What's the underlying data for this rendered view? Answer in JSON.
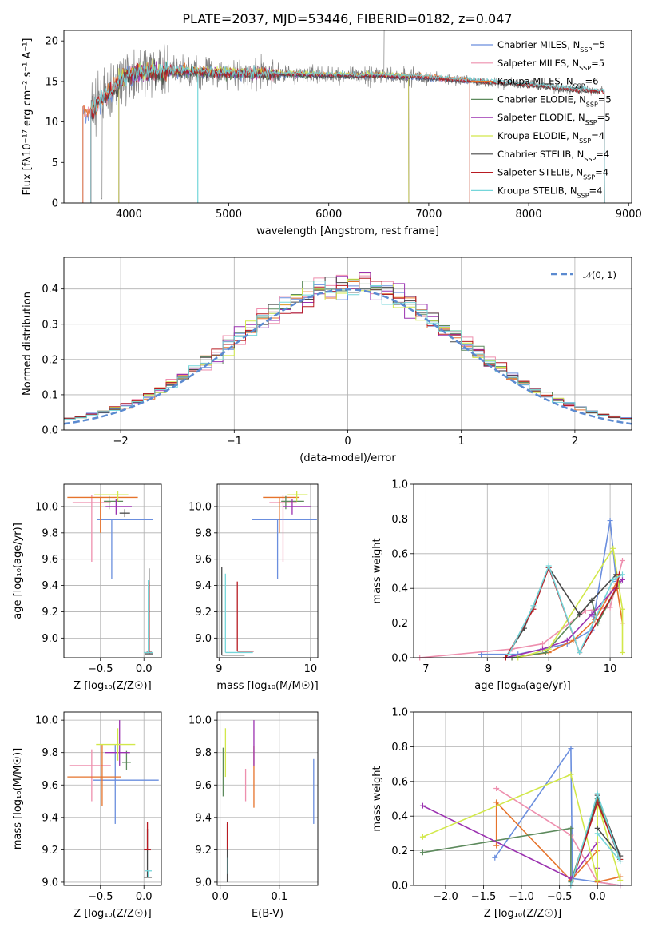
{
  "figure": {
    "title": "PLATE=2037, MJD=53446, FIBERID=0182, z=0.047"
  },
  "colors": {
    "data": "#808080",
    "Chabrier MILES": "#6a8ede",
    "Salpeter MILES": "#ee8fae",
    "Kroupa MILES": "#e6732b",
    "Chabrier ELODIE": "#5d8a5d",
    "Salpeter ELODIE": "#9b32b0",
    "Kroupa ELODIE": "#d2e84a",
    "Chabrier STELIB": "#484848",
    "Salpeter STELIB": "#b81b22",
    "Kroupa STELIB": "#74d6da",
    "normal": "#5b8ad0"
  },
  "chart_data": [
    {
      "id": "spectrum",
      "type": "line",
      "title": "PLATE=2037, MJD=53446, FIBERID=0182, z=0.047",
      "xlabel": "wavelength [Angstrom, rest frame]",
      "ylabel": "Flux [f$_\\lambda$10$^{-17}$ erg cm$^{-2}$ s$^{-1}$ A$^{-1}$]",
      "xlim": [
        3350,
        9030
      ],
      "ylim": [
        0,
        21.3
      ],
      "xticks": [
        4000,
        5000,
        6000,
        7000,
        8000,
        9000
      ],
      "yticks": [
        0,
        5,
        10,
        15,
        20
      ],
      "grid": false,
      "legend_position": "top-right",
      "legend": [
        {
          "model": "Chabrier MILES",
          "nssp": "5"
        },
        {
          "model": "Salpeter MILES",
          "nssp": "5"
        },
        {
          "model": "Kroupa MILES",
          "nssp": "6"
        },
        {
          "model": "Chabrier ELODIE",
          "nssp": "5"
        },
        {
          "model": "Salpeter ELODIE",
          "nssp": "5"
        },
        {
          "model": "Kroupa ELODIE",
          "nssp": "4"
        },
        {
          "model": "Chabrier STELIB",
          "nssp": "4"
        },
        {
          "model": "Salpeter STELIB",
          "nssp": "4"
        },
        {
          "model": "Kroupa STELIB",
          "nssp": "4"
        }
      ],
      "continuum": {
        "x": [
          3620,
          3700,
          3800,
          3900,
          4000,
          4100,
          4300,
          4500,
          4700,
          4900,
          5100,
          5300,
          5500,
          5700,
          5900,
          6100,
          6300,
          6500,
          6700,
          6900,
          7100,
          7300,
          7500,
          7700,
          7900,
          8100,
          8300,
          8500,
          8760
        ],
        "y": [
          11.2,
          12.5,
          13.5,
          15.0,
          15.8,
          16.2,
          16.2,
          16.3,
          16.2,
          16.1,
          16.0,
          16.0,
          15.9,
          15.9,
          15.8,
          15.8,
          15.7,
          15.8,
          15.6,
          15.6,
          15.4,
          15.2,
          15.0,
          14.9,
          14.7,
          14.5,
          14.2,
          14.0,
          13.8
        ]
      },
      "model_range": {
        "MILES": [
          3540,
          7410
        ],
        "ELODIE": [
          3900,
          6800
        ],
        "STELIB": [
          3620,
          8760
        ]
      }
    },
    {
      "id": "residuals",
      "type": "line",
      "xlabel": "(data-model)/error",
      "ylabel": "Normed distribution",
      "xlim": [
        -2.5,
        2.5
      ],
      "ylim": [
        0,
        0.49
      ],
      "xticks": [
        -2,
        -1,
        0,
        1,
        2
      ],
      "yticks": [
        0.0,
        0.1,
        0.2,
        0.3,
        0.4
      ],
      "grid": true,
      "legend_position": "top-right",
      "legend_label": "𝒩(0, 1)",
      "histogram_bin_width": 0.1
    },
    {
      "id": "age-vs-z",
      "type": "scatter",
      "xlabel": "Z [log₁₀(Z/Z☉)]",
      "ylabel": "age  [log₁₀(age/yr)]",
      "xlim": [
        -0.92,
        0.2
      ],
      "ylim": [
        8.85,
        10.17
      ],
      "xticks": [
        -0.5,
        0.0
      ],
      "yticks": [
        9.0,
        9.2,
        9.4,
        9.6,
        9.8,
        10.0
      ],
      "grid": true,
      "points": [
        {
          "series": "Chabrier MILES",
          "x": -0.37,
          "xerr": [
            0.17,
            0.47
          ],
          "y": 9.9,
          "yerr": [
            0.45,
            0
          ]
        },
        {
          "series": "Salpeter MILES",
          "x": -0.6,
          "xerr": [
            0.22,
            0.22
          ],
          "y": 10.03,
          "yerr": [
            0.45,
            0.06
          ]
        },
        {
          "series": "Kroupa MILES",
          "x": -0.5,
          "xerr": [
            0.38,
            0.43
          ],
          "y": 10.07,
          "yerr": [
            0.27,
            0
          ]
        },
        {
          "series": "Chabrier ELODIE",
          "x": -0.4,
          "xerr": [
            0.06,
            0.16
          ],
          "y": 10.04,
          "yerr": [
            0.06,
            0.04
          ]
        },
        {
          "series": "Salpeter ELODIE",
          "x": -0.32,
          "xerr": [
            0.12,
            0.18
          ],
          "y": 10.0,
          "yerr": [
            0.06,
            0.06
          ]
        },
        {
          "series": "Kroupa ELODIE",
          "x": -0.3,
          "xerr": [
            0.27,
            0.12
          ],
          "y": 10.09,
          "yerr": [
            0.05,
            0.03
          ]
        },
        {
          "series": "Chabrier STELIB",
          "x": 0.06,
          "xerr": [
            0.05,
            0.04
          ],
          "y": 8.88,
          "yerr": [
            0,
            0.65
          ]
        },
        {
          "series": "Salpeter STELIB",
          "x": 0.06,
          "xerr": [
            0.03,
            0.03
          ],
          "y": 8.9,
          "yerr": [
            0,
            0.53
          ]
        },
        {
          "series": "Kroupa STELIB",
          "x": 0.05,
          "xerr": [
            0.05,
            0.05
          ],
          "y": 8.89,
          "yerr": [
            0,
            0.55
          ]
        },
        {
          "series": "Chabrier STELIB",
          "x": -0.22,
          "xerr": [
            0.06,
            0.06
          ],
          "y": 9.95,
          "yerr": [
            0.03,
            0.03
          ]
        }
      ]
    },
    {
      "id": "age-vs-mass",
      "type": "scatter",
      "xlabel": "mass [log₁₀(M/M☉)]",
      "ylabel": "",
      "xlim": [
        8.98,
        10.08
      ],
      "ylim": [
        8.85,
        10.17
      ],
      "xticks": [
        9,
        10
      ],
      "yticks": [
        9.0,
        9.2,
        9.4,
        9.6,
        9.8,
        10.0
      ],
      "grid": true,
      "points": [
        {
          "series": "Chabrier MILES",
          "x": 9.64,
          "xerr": [
            0.28,
            0.43
          ],
          "y": 9.9,
          "yerr": [
            0.45,
            0
          ]
        },
        {
          "series": "Salpeter MILES",
          "x": 9.7,
          "xerr": [
            0.15,
            0.15
          ],
          "y": 10.03,
          "yerr": [
            0.45,
            0.06
          ]
        },
        {
          "series": "Kroupa MILES",
          "x": 9.66,
          "xerr": [
            0.18,
            0.22
          ],
          "y": 10.07,
          "yerr": [
            0.27,
            0
          ]
        },
        {
          "series": "Chabrier ELODIE",
          "x": 9.73,
          "xerr": [
            0.05,
            0.2
          ],
          "y": 10.04,
          "yerr": [
            0.06,
            0.04
          ]
        },
        {
          "series": "Salpeter ELODIE",
          "x": 9.8,
          "xerr": [
            0.1,
            0.2
          ],
          "y": 10.0,
          "yerr": [
            0.06,
            0.06
          ]
        },
        {
          "series": "Kroupa ELODIE",
          "x": 9.85,
          "xerr": [
            0.1,
            0.12
          ],
          "y": 10.09,
          "yerr": [
            0.05,
            0.03
          ]
        },
        {
          "series": "Chabrier STELIB",
          "x": 9.03,
          "xerr": [
            0,
            0.25
          ],
          "y": 8.87,
          "yerr": [
            0,
            0.67
          ]
        },
        {
          "series": "Salpeter STELIB",
          "x": 9.2,
          "xerr": [
            0,
            0.18
          ],
          "y": 8.9,
          "yerr": [
            0,
            0.53
          ]
        },
        {
          "series": "Kroupa STELIB",
          "x": 9.07,
          "xerr": [
            0,
            0.3
          ],
          "y": 8.89,
          "yerr": [
            0,
            0.6
          ]
        }
      ]
    },
    {
      "id": "mass-weight-vs-age",
      "type": "line",
      "xlabel": "age  [log₁₀(age/yr)]",
      "ylabel": "mass weight",
      "xlim": [
        6.8,
        10.35
      ],
      "ylim": [
        0,
        1.0
      ],
      "xticks": [
        7,
        8,
        9,
        10
      ],
      "yticks": [
        0.0,
        0.2,
        0.4,
        0.6,
        0.8,
        1.0
      ],
      "grid": true,
      "series": [
        {
          "name": "Chabrier MILES",
          "x": [
            7.9,
            8.5,
            9.3,
            9.7,
            10.0,
            10.1
          ],
          "y": [
            0.02,
            0.02,
            0.08,
            0.16,
            0.79,
            0.44
          ]
        },
        {
          "name": "Salpeter MILES",
          "x": [
            6.9,
            8.4,
            8.9,
            9.6,
            10.0,
            10.2
          ],
          "y": [
            0.0,
            0.05,
            0.08,
            0.27,
            0.29,
            0.56
          ]
        },
        {
          "name": "Kroupa MILES",
          "x": [
            8.4,
            9.0,
            9.4,
            9.75,
            10.1,
            10.2
          ],
          "y": [
            0.0,
            0.03,
            0.1,
            0.22,
            0.43,
            0.2
          ]
        },
        {
          "name": "Chabrier ELODIE",
          "x": [
            8.4,
            8.95,
            9.7,
            9.8,
            10.15
          ],
          "y": [
            0.0,
            0.03,
            0.33,
            0.2,
            0.43
          ]
        },
        {
          "name": "Salpeter ELODIE",
          "x": [
            8.3,
            8.9,
            9.3,
            9.7,
            10.2
          ],
          "y": [
            0.0,
            0.05,
            0.1,
            0.25,
            0.45
          ]
        },
        {
          "name": "Kroupa ELODIE",
          "x": [
            8.5,
            9.0,
            10.05,
            10.2,
            10.2
          ],
          "y": [
            0.0,
            0.05,
            0.63,
            0.28,
            0.03
          ]
        },
        {
          "name": "Chabrier STELIB",
          "x": [
            8.3,
            8.6,
            9.0,
            9.5,
            9.7,
            10.1
          ],
          "y": [
            0.0,
            0.17,
            0.52,
            0.25,
            0.33,
            0.48
          ]
        },
        {
          "name": "Salpeter STELIB",
          "x": [
            8.3,
            8.75,
            9.0,
            9.5,
            10.1,
            10.15
          ],
          "y": [
            0.0,
            0.28,
            0.52,
            0.03,
            0.4,
            0.48
          ]
        },
        {
          "name": "Kroupa STELIB",
          "x": [
            8.35,
            8.75,
            9.0,
            9.5,
            10.05,
            10.2
          ],
          "y": [
            0.02,
            0.3,
            0.53,
            0.03,
            0.45,
            0.48
          ]
        }
      ]
    },
    {
      "id": "mass-vs-z",
      "type": "scatter",
      "xlabel": "Z [log₁₀(Z/Z☉)]",
      "ylabel": "mass [log₁₀(M/M☉)]",
      "xlim": [
        -0.92,
        0.2
      ],
      "ylim": [
        8.98,
        10.05
      ],
      "xticks": [
        -0.5,
        0.0
      ],
      "yticks": [
        9.0,
        9.2,
        9.4,
        9.6,
        9.8,
        10.0
      ],
      "grid": true,
      "points": [
        {
          "series": "Chabrier MILES",
          "x": -0.33,
          "xerr": [
            0.25,
            0.5
          ],
          "y": 9.63,
          "yerr": [
            0.27,
            0.22
          ]
        },
        {
          "series": "Salpeter MILES",
          "x": -0.6,
          "xerr": [
            0.25,
            0.22
          ],
          "y": 9.72,
          "yerr": [
            0.22,
            0.1
          ]
        },
        {
          "series": "Kroupa MILES",
          "x": -0.48,
          "xerr": [
            0.4,
            0.22
          ],
          "y": 9.65,
          "yerr": [
            0.18,
            0.2
          ]
        },
        {
          "series": "Chabrier ELODIE",
          "x": -0.2,
          "xerr": [
            0.05,
            0.05
          ],
          "y": 9.74,
          "yerr": [
            0.05,
            0.07
          ]
        },
        {
          "series": "Salpeter ELODIE",
          "x": -0.28,
          "xerr": [
            0.17,
            0.12
          ],
          "y": 9.8,
          "yerr": [
            0.08,
            0.2
          ]
        },
        {
          "series": "Kroupa ELODIE",
          "x": -0.3,
          "xerr": [
            0.25,
            0.2
          ],
          "y": 9.85,
          "yerr": [
            0.1,
            0.1
          ]
        },
        {
          "series": "Chabrier STELIB",
          "x": 0.04,
          "xerr": [
            0.04,
            0.05
          ],
          "y": 9.03,
          "yerr": [
            0.0,
            0.3
          ]
        },
        {
          "series": "Salpeter STELIB",
          "x": 0.04,
          "xerr": [
            0.04,
            0.04
          ],
          "y": 9.2,
          "yerr": [
            0.0,
            0.17
          ]
        },
        {
          "series": "Kroupa STELIB",
          "x": 0.05,
          "xerr": [
            0.04,
            0.04
          ],
          "y": 9.07,
          "yerr": [
            0.04,
            0.0
          ]
        }
      ]
    },
    {
      "id": "mass-vs-ebv",
      "type": "scatter",
      "xlabel": "E(B-V)",
      "ylabel": "",
      "xlim": [
        -0.005,
        0.165
      ],
      "ylim": [
        8.98,
        10.05
      ],
      "xticks": [
        0.0,
        0.1
      ],
      "yticks": [
        9.0,
        9.2,
        9.4,
        9.6,
        9.8,
        10.0
      ],
      "grid": true,
      "points": [
        {
          "series": "Chabrier MILES",
          "x": 0.158,
          "yerr": [
            0.2,
            0.2
          ],
          "y": 9.56
        },
        {
          "series": "Salpeter MILES",
          "x": 0.043,
          "yerr": [
            0.1,
            0.1
          ],
          "y": 9.6
        },
        {
          "series": "Kroupa MILES",
          "x": 0.057,
          "yerr": [
            0.18,
            0.2
          ],
          "y": 9.64
        },
        {
          "series": "Chabrier ELODIE",
          "x": 0.005,
          "yerr": [
            0.2,
            0.1
          ],
          "y": 9.73
        },
        {
          "series": "Salpeter ELODIE",
          "x": 0.057,
          "yerr": [
            0.08,
            0.2
          ],
          "y": 9.8
        },
        {
          "series": "Kroupa ELODIE",
          "x": 0.009,
          "yerr": [
            0.15,
            0.15
          ],
          "y": 9.8
        },
        {
          "series": "Chabrier STELIB",
          "x": 0.012,
          "yerr": [
            0.03,
            0.33
          ],
          "y": 9.03
        },
        {
          "series": "Salpeter STELIB",
          "x": 0.012,
          "yerr": [
            0.0,
            0.17
          ],
          "y": 9.2
        },
        {
          "series": "Kroupa STELIB",
          "x": 0.013,
          "yerr": [
            0.05,
            0.05
          ],
          "y": 9.1
        }
      ]
    },
    {
      "id": "mass-weight-vs-z",
      "type": "line",
      "xlabel": "Z [log₁₀(Z/Z☉)]",
      "ylabel": "mass weight",
      "xlim": [
        -2.42,
        0.45
      ],
      "ylim": [
        0,
        1.0
      ],
      "xticks": [
        -2.0,
        -1.5,
        -1.0,
        -0.5,
        0.0
      ],
      "yticks": [
        0.0,
        0.2,
        0.4,
        0.6,
        0.8,
        1.0
      ],
      "grid": true,
      "series": [
        {
          "name": "Chabrier MILES",
          "x": [
            -1.35,
            -0.35,
            -0.33,
            0.0,
            0.3
          ],
          "y": [
            0.16,
            0.79,
            0.04,
            0.02,
            0.0
          ]
        },
        {
          "name": "Salpeter MILES",
          "x": [
            -1.33,
            -0.35,
            0.0,
            0.3
          ],
          "y": [
            0.56,
            0.29,
            0.02,
            0.0
          ]
        },
        {
          "name": "Kroupa MILES",
          "x": [
            -1.33,
            -1.33,
            -0.35,
            0.0,
            0.0,
            0.3
          ],
          "y": [
            0.23,
            0.48,
            0.03,
            0.2,
            0.02,
            0.05
          ]
        },
        {
          "name": "Chabrier ELODIE",
          "x": [
            -2.3,
            -0.35,
            -0.35,
            0.0,
            0.3
          ],
          "y": [
            0.19,
            0.33,
            0.02,
            0.5,
            0.15
          ]
        },
        {
          "name": "Salpeter ELODIE",
          "x": [
            -2.3,
            -0.35,
            0.0,
            0.0
          ],
          "y": [
            0.46,
            0.04,
            0.25,
            0.1
          ]
        },
        {
          "name": "Kroupa ELODIE",
          "x": [
            -2.3,
            -0.35,
            0.0,
            0.0,
            0.3
          ],
          "y": [
            0.28,
            0.64,
            0.03,
            0.48,
            0.03
          ]
        },
        {
          "name": "Chabrier STELIB",
          "x": [
            -0.35,
            0.0,
            0.3,
            0.0
          ],
          "y": [
            0.0,
            0.52,
            0.17,
            0.33
          ]
        },
        {
          "name": "Salpeter STELIB",
          "x": [
            -0.35,
            0.0,
            0.3
          ],
          "y": [
            0.0,
            0.48,
            0.15
          ]
        },
        {
          "name": "Kroupa STELIB",
          "x": [
            -0.35,
            0.0,
            0.3,
            0.0
          ],
          "y": [
            0.0,
            0.53,
            0.14,
            0.3
          ]
        }
      ]
    }
  ]
}
